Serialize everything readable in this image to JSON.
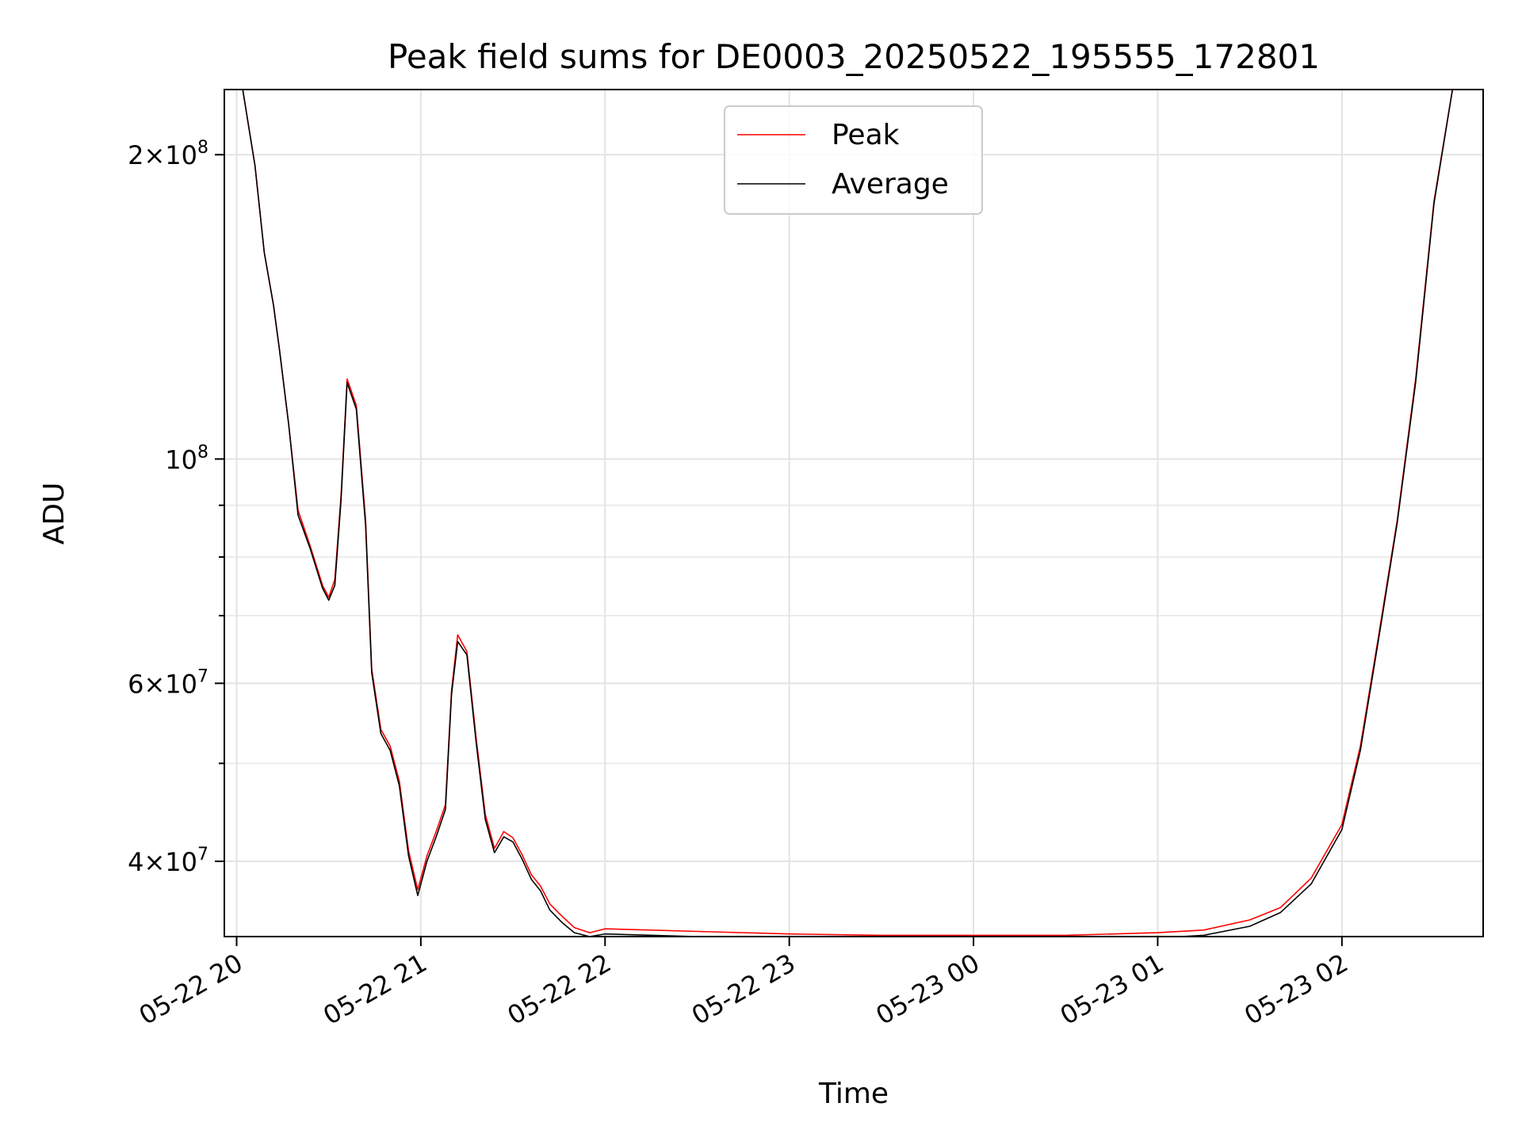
{
  "chart_data": {
    "type": "line",
    "title": "Peak field sums for DE0003_20250522_195555_172801",
    "xlabel": "Time",
    "ylabel": "ADU",
    "y_scale": "log",
    "ylim": [
      33700000,
      232000000
    ],
    "xlim": [
      "2025-05-22 19:56",
      "2025-05-23 02:46"
    ],
    "grid": true,
    "legend_position": "upper center",
    "x_ticks": [
      {
        "at": "2025-05-22 20:00",
        "label": "05-22 20"
      },
      {
        "at": "2025-05-22 21:00",
        "label": "05-22 21"
      },
      {
        "at": "2025-05-22 22:00",
        "label": "05-22 22"
      },
      {
        "at": "2025-05-22 23:00",
        "label": "05-22 23"
      },
      {
        "at": "2025-05-23 00:00",
        "label": "05-23 00"
      },
      {
        "at": "2025-05-23 01:00",
        "label": "05-23 01"
      },
      {
        "at": "2025-05-23 02:00",
        "label": "05-23 02"
      }
    ],
    "y_ticks": [
      {
        "value": 40000000,
        "base": "4",
        "sup": "7"
      },
      {
        "value": 60000000,
        "base": "6",
        "sup": "7"
      },
      {
        "value": 100000000,
        "base": "10",
        "sup": "8"
      },
      {
        "value": 200000000,
        "base": "2",
        "sup": "8"
      }
    ],
    "y_minor_ticks": [
      50000000,
      70000000,
      80000000,
      90000000
    ],
    "series": [
      {
        "name": "Peak",
        "color": "#ff0000",
        "x": [
          "2025-05-22 19:55",
          "2025-05-22 20:02",
          "2025-05-22 20:06",
          "2025-05-22 20:09",
          "2025-05-22 20:12",
          "2025-05-22 20:14",
          "2025-05-22 20:17",
          "2025-05-22 20:20",
          "2025-05-22 20:24",
          "2025-05-22 20:28",
          "2025-05-22 20:30",
          "2025-05-22 20:32",
          "2025-05-22 20:34",
          "2025-05-22 20:36",
          "2025-05-22 20:39",
          "2025-05-22 20:42",
          "2025-05-22 20:44",
          "2025-05-22 20:47",
          "2025-05-22 20:50",
          "2025-05-22 20:53",
          "2025-05-22 20:56",
          "2025-05-22 20:59",
          "2025-05-22 21:02",
          "2025-05-22 21:05",
          "2025-05-22 21:08",
          "2025-05-22 21:10",
          "2025-05-22 21:12",
          "2025-05-22 21:15",
          "2025-05-22 21:18",
          "2025-05-22 21:21",
          "2025-05-22 21:24",
          "2025-05-22 21:27",
          "2025-05-22 21:30",
          "2025-05-22 21:33",
          "2025-05-22 21:36",
          "2025-05-22 21:39",
          "2025-05-22 21:42",
          "2025-05-22 21:46",
          "2025-05-22 21:50",
          "2025-05-22 21:55",
          "2025-05-22 22:00",
          "2025-05-22 22:30",
          "2025-05-22 23:00",
          "2025-05-22 23:30",
          "2025-05-23 00:00",
          "2025-05-23 00:30",
          "2025-05-23 01:00",
          "2025-05-23 01:15",
          "2025-05-23 01:30",
          "2025-05-23 01:40",
          "2025-05-23 01:50",
          "2025-05-23 02:00",
          "2025-05-23 02:06",
          "2025-05-23 02:12",
          "2025-05-23 02:18",
          "2025-05-23 02:24",
          "2025-05-23 02:30",
          "2025-05-23 02:36"
        ],
        "values": [
          232000000,
          232000000,
          195000000,
          160000000,
          142000000,
          128000000,
          108000000,
          89000000,
          82000000,
          75000000,
          73000000,
          76000000,
          92000000,
          120000000,
          113000000,
          87000000,
          62000000,
          54000000,
          52000000,
          48000000,
          41000000,
          37500000,
          40500000,
          42800000,
          45500000,
          59000000,
          67000000,
          64500000,
          53000000,
          44500000,
          41200000,
          42800000,
          42200000,
          40600000,
          38800000,
          37800000,
          36300000,
          35300000,
          34400000,
          34000000,
          34300000,
          34100000,
          33900000,
          33800000,
          33800000,
          33800000,
          34000000,
          34200000,
          35000000,
          36000000,
          38500000,
          43500000,
          52000000,
          67000000,
          87000000,
          120000000,
          180000000,
          232000000
        ]
      },
      {
        "name": "Average",
        "color": "#000000",
        "x": [
          "2025-05-22 19:55",
          "2025-05-22 20:02",
          "2025-05-22 20:06",
          "2025-05-22 20:09",
          "2025-05-22 20:12",
          "2025-05-22 20:14",
          "2025-05-22 20:17",
          "2025-05-22 20:20",
          "2025-05-22 20:24",
          "2025-05-22 20:28",
          "2025-05-22 20:30",
          "2025-05-22 20:32",
          "2025-05-22 20:34",
          "2025-05-22 20:36",
          "2025-05-22 20:39",
          "2025-05-22 20:42",
          "2025-05-22 20:44",
          "2025-05-22 20:47",
          "2025-05-22 20:50",
          "2025-05-22 20:53",
          "2025-05-22 20:56",
          "2025-05-22 20:59",
          "2025-05-22 21:02",
          "2025-05-22 21:05",
          "2025-05-22 21:08",
          "2025-05-22 21:10",
          "2025-05-22 21:12",
          "2025-05-22 21:15",
          "2025-05-22 21:18",
          "2025-05-22 21:21",
          "2025-05-22 21:24",
          "2025-05-22 21:27",
          "2025-05-22 21:30",
          "2025-05-22 21:33",
          "2025-05-22 21:36",
          "2025-05-22 21:39",
          "2025-05-22 21:42",
          "2025-05-22 21:46",
          "2025-05-22 21:50",
          "2025-05-22 21:55",
          "2025-05-22 22:00",
          "2025-05-22 22:30",
          "2025-05-22 23:00",
          "2025-05-22 23:30",
          "2025-05-23 00:00",
          "2025-05-23 00:30",
          "2025-05-23 01:00",
          "2025-05-23 01:15",
          "2025-05-23 01:30",
          "2025-05-23 01:40",
          "2025-05-23 01:50",
          "2025-05-23 02:00",
          "2025-05-23 02:06",
          "2025-05-23 02:12",
          "2025-05-23 02:18",
          "2025-05-23 02:24",
          "2025-05-23 02:30",
          "2025-05-23 02:36"
        ],
        "values": [
          232000000,
          232000000,
          195000000,
          160000000,
          142000000,
          128000000,
          108000000,
          88000000,
          81500000,
          74500000,
          72500000,
          75000000,
          91000000,
          119000000,
          112000000,
          86000000,
          61500000,
          53500000,
          51500000,
          47500000,
          40500000,
          37000000,
          40000000,
          42300000,
          45000000,
          58500000,
          66000000,
          64000000,
          52500000,
          44000000,
          40800000,
          42300000,
          41800000,
          40200000,
          38400000,
          37400000,
          35800000,
          34800000,
          34000000,
          33700000,
          33900000,
          33700000,
          33500000,
          33400000,
          33400000,
          33400000,
          33600000,
          33800000,
          34500000,
          35600000,
          38000000,
          43000000,
          51500000,
          66500000,
          86500000,
          119000000,
          179000000,
          232000000
        ]
      }
    ]
  }
}
